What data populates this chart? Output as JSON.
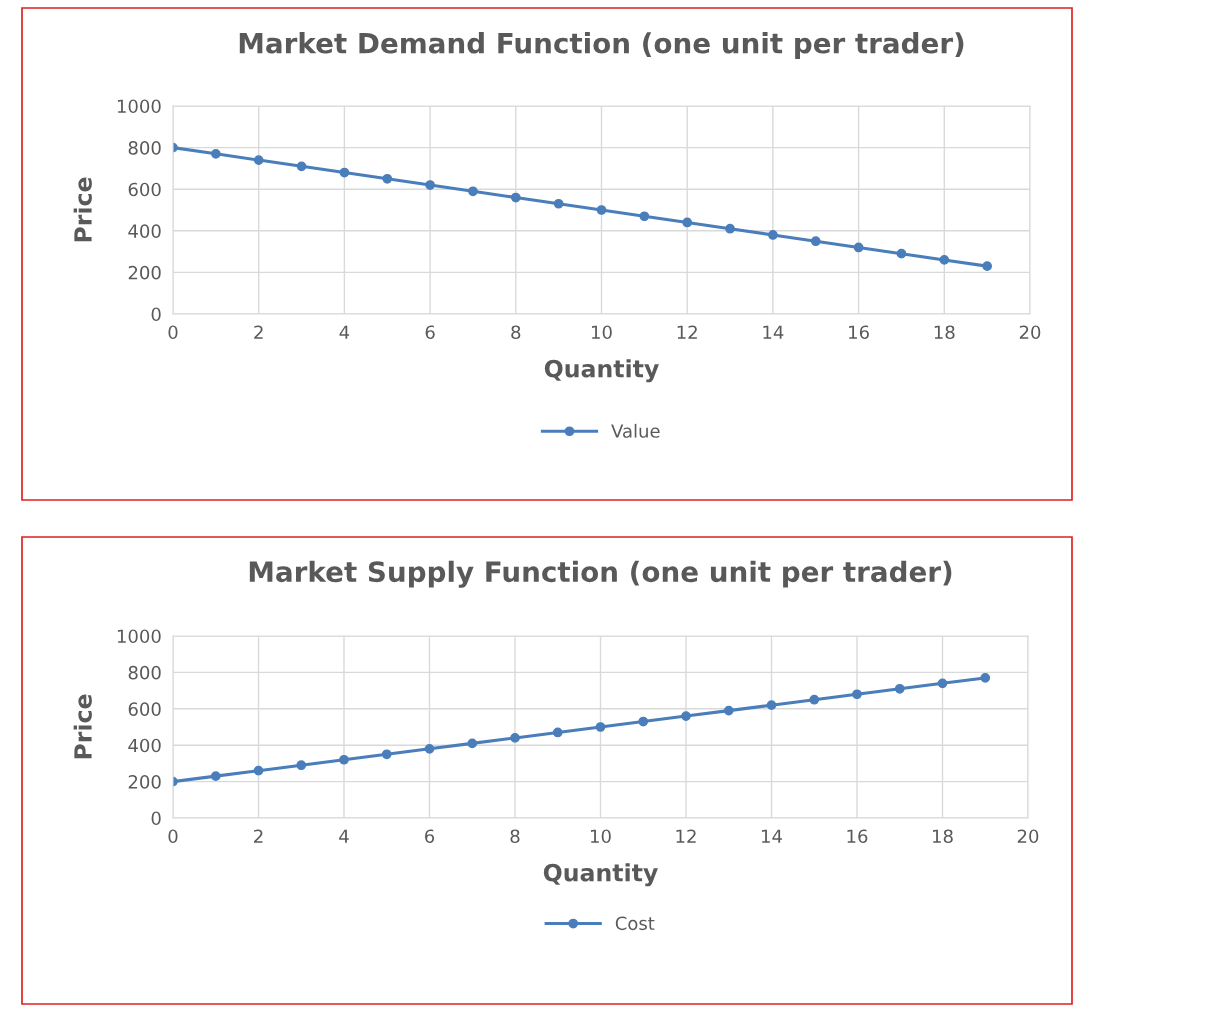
{
  "chart_data": [
    {
      "type": "line",
      "title": "Market Demand Function (one unit per trader)",
      "xlabel": "Quantity",
      "ylabel": "Price",
      "x": [
        0,
        1,
        2,
        3,
        4,
        5,
        6,
        7,
        8,
        9,
        10,
        11,
        12,
        13,
        14,
        15,
        16,
        17,
        18,
        19
      ],
      "series": [
        {
          "name": "Value",
          "color": "#4a7ebb",
          "values": [
            800,
            770,
            740,
            710,
            680,
            650,
            620,
            590,
            560,
            530,
            500,
            470,
            440,
            410,
            380,
            350,
            320,
            290,
            260,
            230
          ]
        }
      ],
      "xlim": [
        0,
        20
      ],
      "xticks": [
        0,
        2,
        4,
        6,
        8,
        10,
        12,
        14,
        16,
        18,
        20
      ],
      "ylim": [
        0,
        1000
      ],
      "yticks": [
        0,
        200,
        400,
        600,
        800,
        1000
      ],
      "grid": true,
      "legend": "bottom",
      "marker": "circle",
      "line_style": "solid"
    },
    {
      "type": "line",
      "title": "Market Supply Function (one unit per trader)",
      "xlabel": "Quantity",
      "ylabel": "Price",
      "x": [
        0,
        1,
        2,
        3,
        4,
        5,
        6,
        7,
        8,
        9,
        10,
        11,
        12,
        13,
        14,
        15,
        16,
        17,
        18,
        19
      ],
      "series": [
        {
          "name": "Cost",
          "color": "#4a7ebb",
          "values": [
            200,
            230,
            260,
            290,
            320,
            350,
            380,
            410,
            440,
            470,
            500,
            530,
            560,
            590,
            620,
            650,
            680,
            710,
            740,
            770
          ]
        }
      ],
      "xlim": [
        0,
        20
      ],
      "xticks": [
        0,
        2,
        4,
        6,
        8,
        10,
        12,
        14,
        16,
        18,
        20
      ],
      "ylim": [
        0,
        1000
      ],
      "yticks": [
        0,
        200,
        400,
        600,
        800,
        1000
      ],
      "grid": true,
      "legend": "bottom",
      "marker": "circle",
      "line_style": "solid"
    }
  ]
}
